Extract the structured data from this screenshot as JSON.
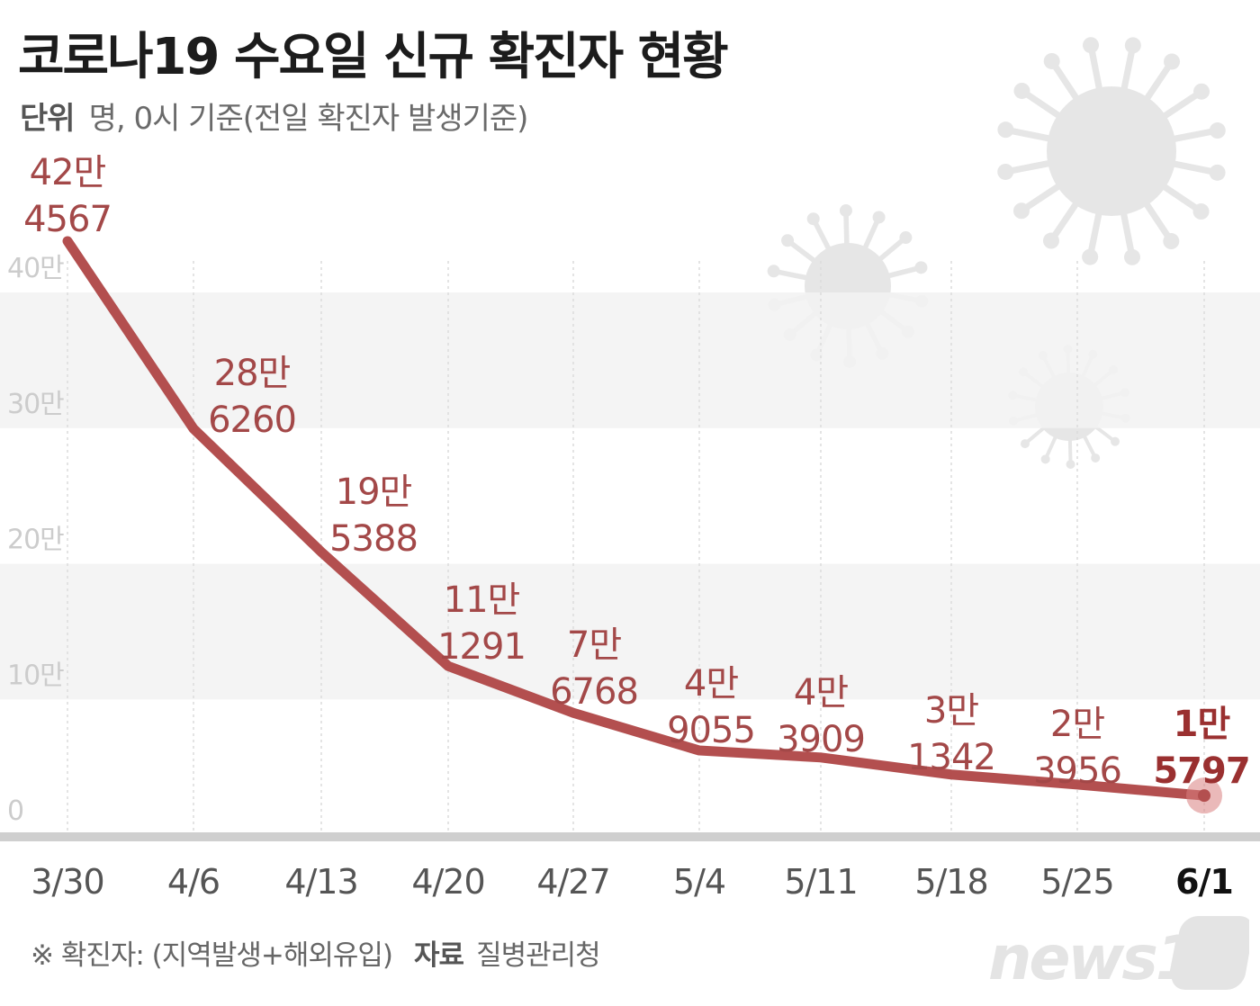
{
  "title": "코로나19 수요일 신규 확진자 현황",
  "unit": {
    "key": "단위",
    "text": "명, 0시 기준(전일 확진자 발생기준)"
  },
  "footer": {
    "note": "※ 확진자: (지역발생+해외유입)",
    "source_key": "자료",
    "source": "질병관리청"
  },
  "logo_text": "news1",
  "colors": {
    "line": "#b34f4f",
    "label": "#a34848",
    "last_label": "#9a3030",
    "band": "#f2f2f2",
    "axis": "#cfcfcf",
    "tick": "#333333",
    "virus": "#e6e6e6"
  },
  "chart_data": {
    "type": "line",
    "x": [
      "3/30",
      "4/6",
      "4/13",
      "4/20",
      "4/27",
      "5/4",
      "5/11",
      "5/18",
      "5/25",
      "6/1"
    ],
    "values": [
      424567,
      286260,
      195388,
      111291,
      76768,
      49055,
      43909,
      31342,
      23956,
      15797
    ],
    "labels": [
      [
        "42만",
        "4567"
      ],
      [
        "28만",
        "6260"
      ],
      [
        "19만",
        "5388"
      ],
      [
        "11만",
        "1291"
      ],
      [
        "7만",
        "6768"
      ],
      [
        "4만",
        "9055"
      ],
      [
        "4만",
        "3909"
      ],
      [
        "3만",
        "1342"
      ],
      [
        "2만",
        "3956"
      ],
      [
        "1만",
        "5797"
      ]
    ],
    "y_ticks": [
      "0",
      "10만",
      "20만",
      "30만",
      "40만"
    ],
    "ylim": [
      0,
      400000
    ],
    "grid": "alternating horizontal bands",
    "highlight_last": true
  }
}
